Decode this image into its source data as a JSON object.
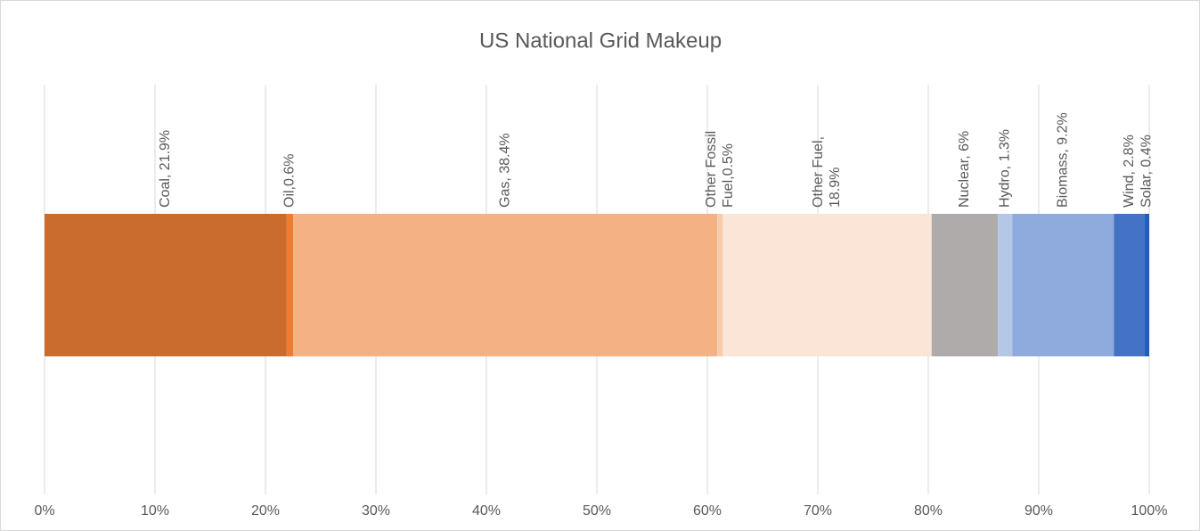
{
  "chart_data": {
    "type": "stacked_barh",
    "title": "US National Grid Makeup",
    "xlim": [
      0,
      100
    ],
    "xticks": [
      {
        "value": 0,
        "label": "0%"
      },
      {
        "value": 10,
        "label": "10%"
      },
      {
        "value": 20,
        "label": "20%"
      },
      {
        "value": 30,
        "label": "30%"
      },
      {
        "value": 40,
        "label": "40%"
      },
      {
        "value": 50,
        "label": "50%"
      },
      {
        "value": 60,
        "label": "60%"
      },
      {
        "value": 70,
        "label": "70%"
      },
      {
        "value": 80,
        "label": "80%"
      },
      {
        "value": 90,
        "label": "90%"
      },
      {
        "value": 100,
        "label": "100%"
      }
    ],
    "grid": true,
    "series": [
      {
        "name": "Coal",
        "color": "#c96c2e",
        "values": [
          21.9
        ],
        "value_labels": [
          "Coal, 21.9%"
        ]
      },
      {
        "name": "Oil",
        "color": "#ed7d31",
        "values": [
          0.6
        ],
        "value_labels": [
          "Oil,0.6%"
        ]
      },
      {
        "name": "Gas",
        "color": "#f4b183",
        "values": [
          38.4
        ],
        "value_labels": [
          "Gas, 38.4%"
        ]
      },
      {
        "name": "Other Fossil Fuel",
        "color": "#f8cbad",
        "values": [
          0.5
        ],
        "value_labels": [
          "Other Fossil Fuel,0.5%"
        ]
      },
      {
        "name": "Other Fuel",
        "color": "#fbe5d6",
        "values": [
          18.9
        ],
        "value_labels": [
          "Other Fuel, 18.9%"
        ]
      },
      {
        "name": "Nuclear",
        "color": "#afabab",
        "values": [
          6
        ],
        "value_labels": [
          "Nuclear, 6%"
        ]
      },
      {
        "name": "Hydro",
        "color": "#b4c7e7",
        "values": [
          1.3
        ],
        "value_labels": [
          "Hydro, 1.3%"
        ]
      },
      {
        "name": "Biomass",
        "color": "#8faadc",
        "values": [
          9.2
        ],
        "value_labels": [
          "Biomass, 9.2%"
        ]
      },
      {
        "name": "Wind",
        "color": "#4472c4",
        "values": [
          2.8
        ],
        "value_labels": [
          "Wind, 2.8%"
        ]
      },
      {
        "name": "Solar",
        "color": "#1f5fb4",
        "values": [
          0.4
        ],
        "value_labels": [
          "Solar, 0.4%"
        ]
      }
    ]
  }
}
